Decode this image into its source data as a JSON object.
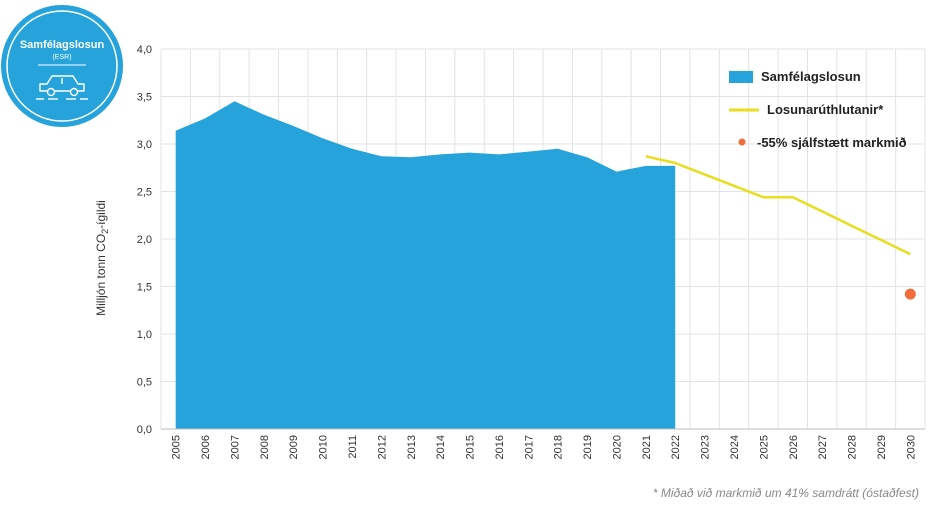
{
  "badge": {
    "title": "Samfélagslosun",
    "subtitle": "(ESR)",
    "icon": "car-icon",
    "color": "#27a3db"
  },
  "footnote": "* Miðað við markmið um 41% samdrátt (óstaðfest)",
  "chart_data": {
    "type": "area",
    "ylabel_main": "Milljón tonn CO",
    "ylabel_sub": "2",
    "ylabel_tail": "-ígildi",
    "ylim": [
      0,
      4
    ],
    "yticks": [
      "0,0",
      "0,5",
      "1,0",
      "1,5",
      "2,0",
      "2,5",
      "3,0",
      "3,5",
      "4,0"
    ],
    "x": [
      "2005",
      "2006",
      "2007",
      "2008",
      "2009",
      "2010",
      "2011",
      "2012",
      "2013",
      "2014",
      "2015",
      "2016",
      "2017",
      "2018",
      "2019",
      "2020",
      "2021",
      "2022",
      "2023",
      "2024",
      "2025",
      "2026",
      "2027",
      "2028",
      "2029",
      "2030"
    ],
    "grid": true,
    "legend_position": "top-right",
    "series": [
      {
        "name": "Samfélagslosun",
        "kind": "area",
        "color": "#27a3db",
        "x": [
          "2005",
          "2006",
          "2007",
          "2008",
          "2009",
          "2010",
          "2011",
          "2012",
          "2013",
          "2014",
          "2015",
          "2016",
          "2017",
          "2018",
          "2019",
          "2020",
          "2021",
          "2022"
        ],
        "values": [
          3.14,
          3.27,
          3.45,
          3.31,
          3.19,
          3.06,
          2.95,
          2.87,
          2.86,
          2.89,
          2.91,
          2.89,
          2.92,
          2.95,
          2.86,
          2.71,
          2.77,
          2.77
        ]
      },
      {
        "name": "Losunarúthlutanir*",
        "kind": "line",
        "color": "#e6de1e",
        "x": [
          "2021",
          "2022",
          "2023",
          "2024",
          "2025",
          "2026",
          "2027",
          "2028",
          "2029",
          "2030"
        ],
        "values": [
          2.87,
          2.8,
          2.68,
          2.56,
          2.44,
          2.44,
          2.29,
          2.14,
          1.99,
          1.84
        ]
      },
      {
        "name": "-55% sjálfstætt markmið",
        "kind": "point",
        "color": "#f26d3d",
        "x": [
          "2030"
        ],
        "values": [
          1.42
        ]
      }
    ]
  }
}
